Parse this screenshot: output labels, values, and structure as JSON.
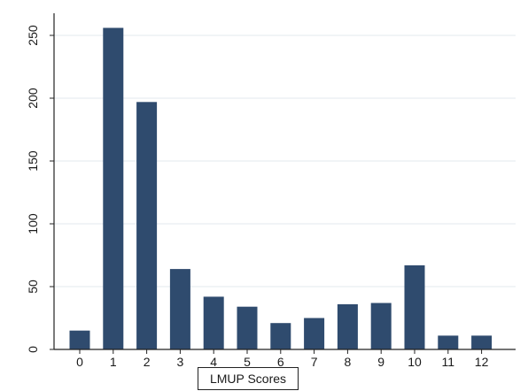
{
  "chart_data": {
    "type": "bar",
    "title": "",
    "xlabel": "LMUP Scores",
    "ylabel": "",
    "categories": [
      "0",
      "1",
      "2",
      "3",
      "4",
      "5",
      "6",
      "7",
      "8",
      "9",
      "10",
      "11",
      "12"
    ],
    "values": [
      15,
      256,
      197,
      64,
      42,
      34,
      21,
      25,
      36,
      37,
      67,
      11,
      11
    ],
    "ylim": [
      0,
      270
    ],
    "yticks": [
      0,
      50,
      100,
      150,
      200,
      250
    ],
    "grid": true,
    "legend": "none",
    "colors": {
      "bar": "#2f4b6e",
      "grid": "#e3e8ee",
      "axis": "#222222",
      "text": "#1a1a1a"
    }
  }
}
